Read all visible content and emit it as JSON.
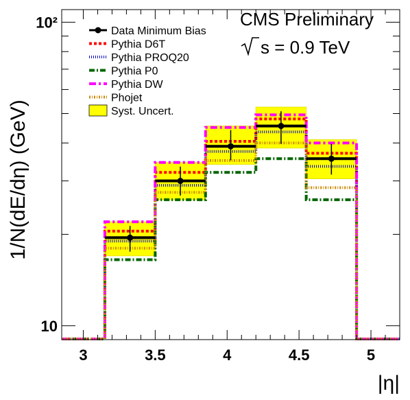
{
  "chart_data": {
    "type": "line",
    "title": "",
    "annotations": {
      "experiment": "CMS Preliminary",
      "energy_prefix": "s = 0.9 TeV"
    },
    "xlabel": "|η|",
    "ylabel": "1/N(dE/dη) (GeV)",
    "xlim": [
      2.85,
      5.2
    ],
    "ylim": [
      9,
      110
    ],
    "log_y": true,
    "x_ticks": [
      3,
      3.5,
      4,
      4.5,
      5
    ],
    "x_tick_labels": [
      "3",
      "3.5",
      "4",
      "4.5",
      "5"
    ],
    "y_ticks": [
      10,
      100
    ],
    "y_tick_labels": [
      "10",
      "10²"
    ],
    "legend_position": "top-left",
    "bin_edges": [
      2.85,
      3.15,
      3.5,
      3.85,
      4.2,
      4.55,
      4.9,
      5.2
    ],
    "data_points": {
      "name": "Data Minimum Bias",
      "x": [
        3.325,
        3.675,
        4.025,
        4.375,
        4.725
      ],
      "y": [
        19.5,
        30.0,
        39.0,
        45.5,
        35.5
      ],
      "syst_low": [
        17.0,
        26.0,
        34.0,
        38.5,
        30.5
      ],
      "syst_high": [
        22.0,
        34.5,
        45.5,
        52.5,
        41.0
      ]
    },
    "series": [
      {
        "name": "Pythia D6T",
        "color": "#ff0000",
        "dash": "4 3",
        "values": [
          20.5,
          32.0,
          40.5,
          48.0,
          37.0
        ]
      },
      {
        "name": "Pythia PROQ20",
        "color": "#0000cc",
        "dash": "1 2",
        "values": [
          19.0,
          29.0,
          37.5,
          43.5,
          33.5
        ]
      },
      {
        "name": "Pythia P0",
        "color": "#006400",
        "dash": "8 3 2 3",
        "values": [
          16.5,
          26.0,
          32.0,
          35.5,
          26.0
        ]
      },
      {
        "name": "Pythia DW",
        "color": "#ff00ff",
        "dash": "10 4 3 4",
        "values": [
          22.0,
          34.5,
          45.0,
          49.5,
          40.0
        ]
      },
      {
        "name": "Phojet",
        "color": "#cc8800",
        "dash": "2 2 1 2",
        "values": [
          18.0,
          27.5,
          35.0,
          40.0,
          28.5
        ]
      }
    ],
    "syst_band_name": "Syst. Uncert.",
    "colors": {
      "band": "#ffff00",
      "band_edge": "#e6e600",
      "data": "#000000"
    }
  }
}
